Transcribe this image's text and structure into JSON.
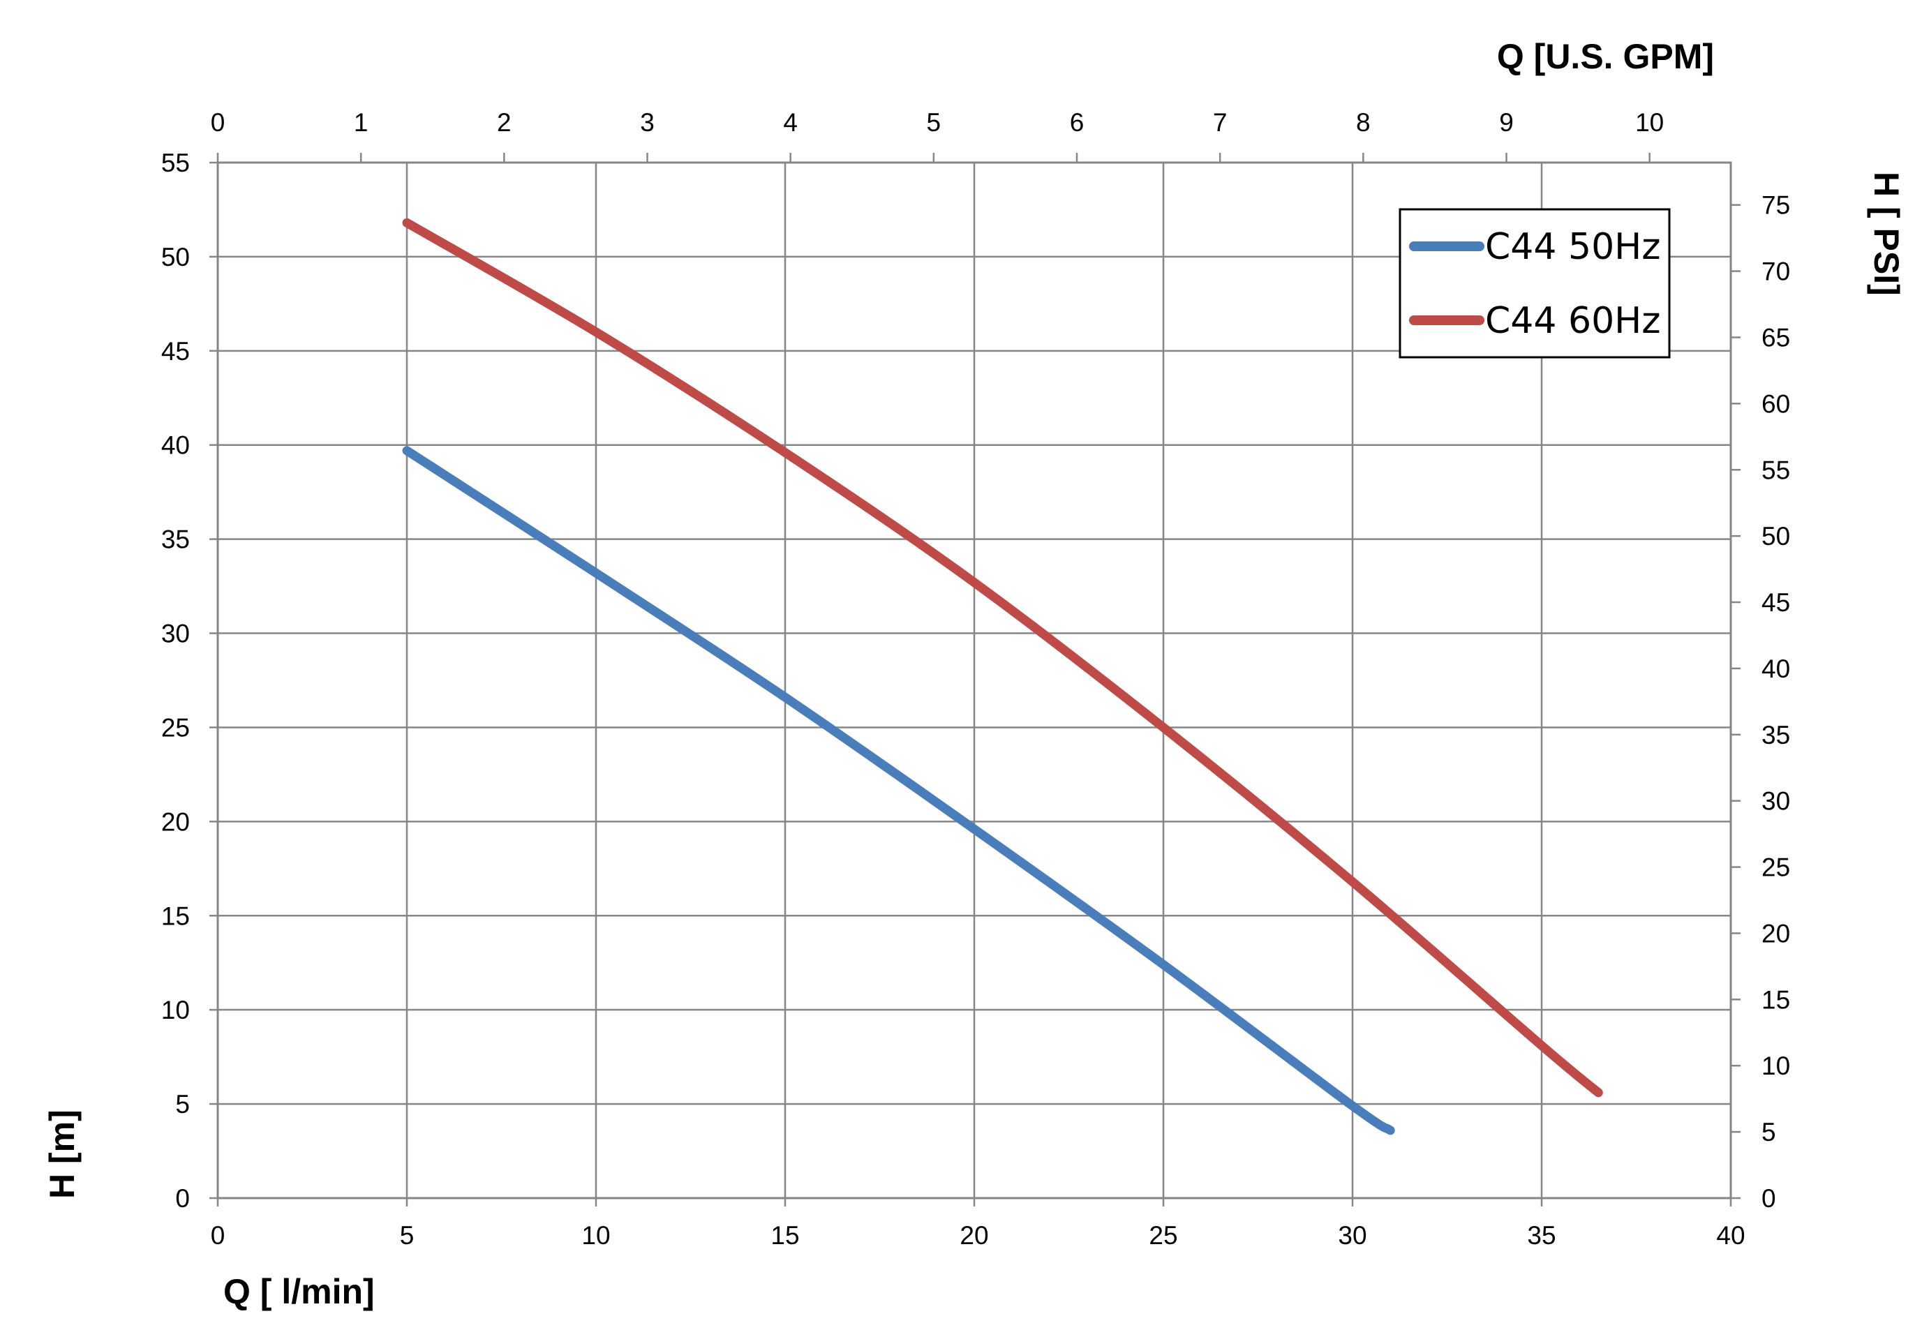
{
  "chart_data": {
    "type": "line",
    "xlabel": "Q [ l/min]",
    "ylabel": "H [m]",
    "x2label": "Q  [U.S. GPM]",
    "y2label": "H [ PSI]",
    "xlim": [
      0,
      40
    ],
    "ylim": [
      0,
      55
    ],
    "x2lim": [
      0,
      10.567
    ],
    "y2lim": [
      0,
      78.2
    ],
    "x_ticks": [
      "0",
      "5",
      "10",
      "15",
      "20",
      "25",
      "30",
      "35",
      "40"
    ],
    "y_ticks": [
      "0",
      "5",
      "10",
      "15",
      "20",
      "25",
      "30",
      "35",
      "40",
      "45",
      "50",
      "55"
    ],
    "x2_ticks": [
      "0",
      "1",
      "2",
      "3",
      "4",
      "5",
      "6",
      "7",
      "8",
      "9",
      "10"
    ],
    "y2_ticks": [
      "0",
      "5",
      "10",
      "15",
      "20",
      "25",
      "30",
      "35",
      "40",
      "45",
      "50",
      "55",
      "60",
      "65",
      "70",
      "75"
    ],
    "grid": true,
    "legend_position": "top-right",
    "series": [
      {
        "name": "C44 50Hz",
        "color": "#4a7ebb",
        "x": [
          5,
          10,
          15,
          20,
          25,
          30,
          31
        ],
        "y": [
          39.7,
          33.2,
          26.6,
          19.6,
          12.4,
          4.9,
          3.6
        ]
      },
      {
        "name": "C44 60Hz",
        "color": "#be4b48",
        "x": [
          5,
          10,
          15,
          20,
          25,
          30,
          35,
          36.5
        ],
        "y": [
          51.8,
          46.0,
          39.6,
          32.7,
          25.0,
          16.8,
          8.1,
          5.6
        ]
      }
    ]
  }
}
